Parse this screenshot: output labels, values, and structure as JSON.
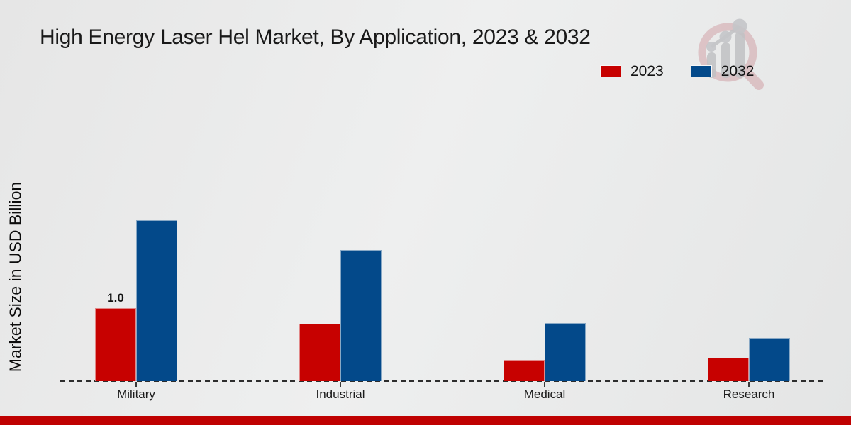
{
  "title": "High Energy Laser Hel Market, By Application, 2023 & 2032",
  "y_axis_label": "Market Size in USD Billion",
  "legend": {
    "items": [
      {
        "label": "2023",
        "color": "#c70100"
      },
      {
        "label": "2032",
        "color": "#03498a"
      }
    ]
  },
  "watermark": {
    "icon": "magnifier-bar-chart-icon",
    "ring_color": "#cf9ba1",
    "bars_color": "#c0c1c4"
  },
  "footer": {
    "bar_color": "#bf0101"
  },
  "chart_data": {
    "type": "bar",
    "title": "High Energy Laser Hel Market, By Application, 2023 & 2032",
    "categories": [
      "Military",
      "Industrial",
      "Medical",
      "Research"
    ],
    "series": [
      {
        "name": "2023",
        "color": "#c70100",
        "values": [
          1.0,
          0.79,
          0.29,
          0.32
        ]
      },
      {
        "name": "2032",
        "color": "#03498a",
        "values": [
          2.2,
          1.8,
          0.8,
          0.59
        ]
      }
    ],
    "data_labels": [
      {
        "series_index": 0,
        "category_index": 0,
        "text": "1.0"
      }
    ],
    "xlabel": "",
    "ylabel": "Market Size in USD Billion",
    "ylim": [
      0,
      2.6
    ],
    "grid": false,
    "y_ticks_visible": false,
    "legend_position": "top-right",
    "baseline_style": "dashed"
  }
}
